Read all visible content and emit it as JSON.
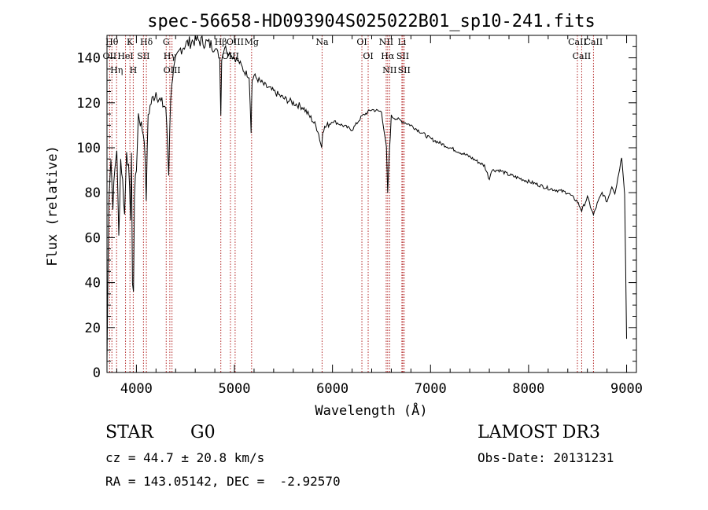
{
  "chart_data": {
    "type": "line",
    "title": "spec-56658-HD093904S025022B01_sp10-241.fits",
    "xlabel": "Wavelength (Å)",
    "ylabel": "Flux (relative)",
    "xlim": [
      3700,
      9100
    ],
    "ylim": [
      0,
      150
    ],
    "xticks": [
      4000,
      5000,
      6000,
      7000,
      8000,
      9000
    ],
    "yticks": [
      0,
      20,
      40,
      60,
      80,
      100,
      120,
      140
    ],
    "grid": false,
    "series": [
      {
        "name": "flux",
        "x": [
          3700,
          3720,
          3740,
          3760,
          3780,
          3800,
          3820,
          3840,
          3860,
          3880,
          3900,
          3920,
          3940,
          3950,
          3960,
          3970,
          3980,
          4000,
          4020,
          4050,
          4080,
          4100,
          4120,
          4150,
          4200,
          4250,
          4300,
          4330,
          4340,
          4360,
          4400,
          4450,
          4500,
          4600,
          4700,
          4800,
          4850,
          4861,
          4870,
          4900,
          4950,
          5000,
          5050,
          5100,
          5150,
          5170,
          5180,
          5200,
          5300,
          5400,
          5500,
          5600,
          5700,
          5800,
          5850,
          5890,
          5900,
          5950,
          6000,
          6100,
          6200,
          6300,
          6400,
          6500,
          6550,
          6563,
          6580,
          6600,
          6700,
          6800,
          7000,
          7200,
          7400,
          7550,
          7600,
          7620,
          7700,
          7800,
          8000,
          8200,
          8400,
          8498,
          8542,
          8600,
          8662,
          8700,
          8750,
          8800,
          8850,
          8880,
          8900,
          8950,
          8980,
          9000
        ],
        "y": [
          5,
          80,
          95,
          75,
          90,
          100,
          60,
          95,
          85,
          70,
          100,
          90,
          70,
          95,
          40,
          35,
          80,
          90,
          115,
          110,
          105,
          78,
          115,
          120,
          125,
          120,
          118,
          88,
          110,
          130,
          138,
          144,
          146,
          148,
          147,
          145,
          140,
          115,
          140,
          145,
          142,
          140,
          138,
          134,
          132,
          108,
          130,
          132,
          128,
          125,
          122,
          120,
          118,
          112,
          108,
          100,
          108,
          110,
          112,
          110,
          108,
          114,
          117,
          116,
          100,
          80,
          98,
          114,
          112,
          110,
          104,
          100,
          96,
          92,
          86,
          90,
          90,
          88,
          85,
          82,
          80,
          76,
          72,
          78,
          70,
          75,
          80,
          76,
          83,
          80,
          84,
          96,
          80,
          15
        ]
      }
    ],
    "lines": [
      {
        "wl": 3750,
        "label": "Hθ"
      },
      {
        "wl": 3727,
        "label": "OII"
      },
      {
        "wl": 3798,
        "label": "Hη"
      },
      {
        "wl": 3889,
        "label": "HeI"
      },
      {
        "wl": 3934,
        "label": "K"
      },
      {
        "wl": 3968,
        "label": "H"
      },
      {
        "wl": 4072,
        "label": "SII"
      },
      {
        "wl": 4102,
        "label": "Hδ"
      },
      {
        "wl": 4304,
        "label": "G"
      },
      {
        "wl": 4341,
        "label": "Hγ"
      },
      {
        "wl": 4363,
        "label": "OIII"
      },
      {
        "wl": 4861,
        "label": "Hβ"
      },
      {
        "wl": 4959,
        "label": "OIII"
      },
      {
        "wl": 5007,
        "label": "OIII"
      },
      {
        "wl": 5175,
        "label": "Mg"
      },
      {
        "wl": 5894,
        "label": "Na"
      },
      {
        "wl": 6300,
        "label": "OI"
      },
      {
        "wl": 6364,
        "label": "OI"
      },
      {
        "wl": 6548,
        "label": "NII"
      },
      {
        "wl": 6563,
        "label": "Hα"
      },
      {
        "wl": 6583,
        "label": "NII"
      },
      {
        "wl": 6708,
        "label": "Li"
      },
      {
        "wl": 6717,
        "label": "SII"
      },
      {
        "wl": 6731,
        "label": "SII"
      },
      {
        "wl": 8498,
        "label": "CaII"
      },
      {
        "wl": 8542,
        "label": "CaII"
      },
      {
        "wl": 8662,
        "label": "CaII"
      }
    ]
  },
  "info": {
    "object_class": "STAR",
    "subclass": "G0",
    "survey": "LAMOST DR3",
    "cz": "cz = 44.7 ± 20.8 km/s",
    "obs_date": "Obs-Date: 20131231",
    "coords": "RA = 143.05142, DEC =  -2.92570"
  },
  "colors": {
    "line_marker": "#b22222",
    "spectrum": "#000000",
    "axis": "#000000"
  }
}
